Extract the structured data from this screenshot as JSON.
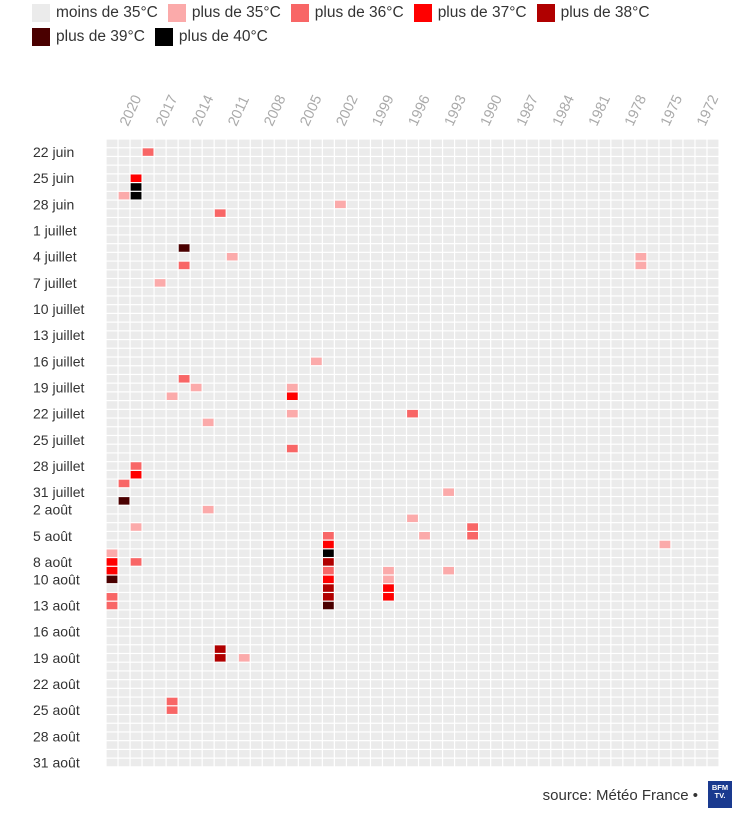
{
  "legend": [
    {
      "label": "moins de 35°C",
      "color": "#ebebeb"
    },
    {
      "label": "plus de 35°C",
      "color": "#fbaaaa"
    },
    {
      "label": "plus de 36°C",
      "color": "#f86666"
    },
    {
      "label": "plus de 37°C",
      "color": "#ff0000"
    },
    {
      "label": "plus de 38°C",
      "color": "#b00000"
    },
    {
      "label": "plus de 39°C",
      "color": "#4a0000"
    },
    {
      "label": "plus de 40°C",
      "color": "#000000"
    }
  ],
  "source": "source: Météo France •",
  "logo_text": "BFM TV.",
  "chart_data": {
    "type": "heatmap",
    "x_tick_labels": [
      "2020",
      "2017",
      "2014",
      "2011",
      "2008",
      "2005",
      "2002",
      "1999",
      "1996",
      "1993",
      "1990",
      "1987",
      "1984",
      "1981",
      "1978",
      "1975",
      "1972"
    ],
    "y_tick_labels": [
      "22 juin",
      "25 juin",
      "28 juin",
      "1 juillet",
      "4 juillet",
      "7 juillet",
      "10 juillet",
      "13 juillet",
      "16 juillet",
      "19 juillet",
      "22 juillet",
      "25 juillet",
      "28 juillet",
      "31 juillet",
      "2 août",
      "5 août",
      "8 août",
      "10 août",
      "13 août",
      "16 août",
      "19 août",
      "22 août",
      "25 août",
      "28 août",
      "31 août"
    ],
    "years": [
      2021,
      2020,
      2019,
      2018,
      2017,
      2016,
      2015,
      2014,
      2013,
      2012,
      2011,
      2010,
      2009,
      2008,
      2007,
      2006,
      2005,
      2004,
      2003,
      2002,
      2001,
      2000,
      1999,
      1998,
      1997,
      1996,
      1995,
      1994,
      1993,
      1992,
      1991,
      1990,
      1989,
      1988,
      1987,
      1986,
      1985,
      1984,
      1983,
      1982,
      1981,
      1980,
      1979,
      1978,
      1977,
      1976,
      1975,
      1974,
      1973,
      1972,
      1971
    ],
    "dates": [
      "21 juin",
      "22 juin",
      "23 juin",
      "24 juin",
      "25 juin",
      "26 juin",
      "27 juin",
      "28 juin",
      "29 juin",
      "30 juin",
      "1 juillet",
      "2 juillet",
      "3 juillet",
      "4 juillet",
      "5 juillet",
      "6 juillet",
      "7 juillet",
      "8 juillet",
      "9 juillet",
      "10 juillet",
      "11 juillet",
      "12 juillet",
      "13 juillet",
      "14 juillet",
      "15 juillet",
      "16 juillet",
      "17 juillet",
      "18 juillet",
      "19 juillet",
      "20 juillet",
      "21 juillet",
      "22 juillet",
      "23 juillet",
      "24 juillet",
      "25 juillet",
      "26 juillet",
      "27 juillet",
      "28 juillet",
      "29 juillet",
      "30 juillet",
      "31 juillet",
      "1 août",
      "2 août",
      "3 août",
      "4 août",
      "5 août",
      "6 août",
      "7 août",
      "8 août",
      "9 août",
      "10 août",
      "11 août",
      "12 août",
      "13 août",
      "14 août",
      "15 août",
      "16 août",
      "17 août",
      "18 août",
      "19 août",
      "20 août",
      "21 août",
      "22 août",
      "23 août",
      "24 août",
      "25 août",
      "26 août",
      "27 août",
      "28 août",
      "29 août",
      "30 août",
      "31 août"
    ],
    "default_category": "moins de 35°C",
    "cells": [
      {
        "year": 2018,
        "date": "22 juin",
        "category": "plus de 36°C"
      },
      {
        "year": 2019,
        "date": "25 juin",
        "category": "plus de 37°C"
      },
      {
        "year": 2019,
        "date": "26 juin",
        "category": "plus de 40°C"
      },
      {
        "year": 2020,
        "date": "27 juin",
        "category": "plus de 35°C"
      },
      {
        "year": 2019,
        "date": "27 juin",
        "category": "plus de 40°C"
      },
      {
        "year": 2002,
        "date": "28 juin",
        "category": "plus de 35°C"
      },
      {
        "year": 2012,
        "date": "29 juin",
        "category": "plus de 36°C"
      },
      {
        "year": 2015,
        "date": "3 juillet",
        "category": "plus de 39°C"
      },
      {
        "year": 2011,
        "date": "4 juillet",
        "category": "plus de 35°C"
      },
      {
        "year": 1977,
        "date": "4 juillet",
        "category": "plus de 35°C"
      },
      {
        "year": 2015,
        "date": "5 juillet",
        "category": "plus de 36°C"
      },
      {
        "year": 1977,
        "date": "5 juillet",
        "category": "plus de 35°C"
      },
      {
        "year": 2017,
        "date": "7 juillet",
        "category": "plus de 35°C"
      },
      {
        "year": 2004,
        "date": "16 juillet",
        "category": "plus de 35°C"
      },
      {
        "year": 2015,
        "date": "18 juillet",
        "category": "plus de 36°C"
      },
      {
        "year": 2014,
        "date": "19 juillet",
        "category": "plus de 35°C"
      },
      {
        "year": 2006,
        "date": "19 juillet",
        "category": "plus de 35°C"
      },
      {
        "year": 2016,
        "date": "20 juillet",
        "category": "plus de 35°C"
      },
      {
        "year": 2006,
        "date": "20 juillet",
        "category": "plus de 37°C"
      },
      {
        "year": 2006,
        "date": "22 juillet",
        "category": "plus de 35°C"
      },
      {
        "year": 1996,
        "date": "22 juillet",
        "category": "plus de 36°C"
      },
      {
        "year": 2013,
        "date": "23 juillet",
        "category": "plus de 35°C"
      },
      {
        "year": 2006,
        "date": "26 juillet",
        "category": "plus de 36°C"
      },
      {
        "year": 2019,
        "date": "28 juillet",
        "category": "plus de 36°C"
      },
      {
        "year": 2019,
        "date": "29 juillet",
        "category": "plus de 37°C"
      },
      {
        "year": 2020,
        "date": "30 juillet",
        "category": "plus de 36°C"
      },
      {
        "year": 1993,
        "date": "31 juillet",
        "category": "plus de 35°C"
      },
      {
        "year": 2020,
        "date": "1 août",
        "category": "plus de 39°C"
      },
      {
        "year": 2013,
        "date": "2 août",
        "category": "plus de 35°C"
      },
      {
        "year": 1996,
        "date": "3 août",
        "category": "plus de 35°C"
      },
      {
        "year": 2019,
        "date": "4 août",
        "category": "plus de 35°C"
      },
      {
        "year": 1991,
        "date": "4 août",
        "category": "plus de 36°C"
      },
      {
        "year": 2003,
        "date": "5 août",
        "category": "plus de 36°C"
      },
      {
        "year": 1995,
        "date": "5 août",
        "category": "plus de 35°C"
      },
      {
        "year": 1991,
        "date": "5 août",
        "category": "plus de 36°C"
      },
      {
        "year": 2003,
        "date": "6 août",
        "category": "plus de 37°C"
      },
      {
        "year": 1975,
        "date": "6 août",
        "category": "plus de 35°C"
      },
      {
        "year": 2021,
        "date": "7 août",
        "category": "plus de 35°C"
      },
      {
        "year": 2003,
        "date": "7 août",
        "category": "plus de 40°C"
      },
      {
        "year": 2021,
        "date": "8 août",
        "category": "plus de 37°C"
      },
      {
        "year": 2019,
        "date": "8 août",
        "category": "plus de 36°C"
      },
      {
        "year": 2003,
        "date": "8 août",
        "category": "plus de 38°C"
      },
      {
        "year": 2021,
        "date": "9 août",
        "category": "plus de 37°C"
      },
      {
        "year": 2003,
        "date": "9 août",
        "category": "plus de 36°C"
      },
      {
        "year": 1998,
        "date": "9 août",
        "category": "plus de 35°C"
      },
      {
        "year": 1993,
        "date": "9 août",
        "category": "plus de 35°C"
      },
      {
        "year": 2021,
        "date": "10 août",
        "category": "plus de 39°C"
      },
      {
        "year": 2003,
        "date": "10 août",
        "category": "plus de 37°C"
      },
      {
        "year": 1998,
        "date": "10 août",
        "category": "plus de 35°C"
      },
      {
        "year": 2003,
        "date": "11 août",
        "category": "plus de 38°C"
      },
      {
        "year": 1998,
        "date": "11 août",
        "category": "plus de 37°C"
      },
      {
        "year": 2021,
        "date": "12 août",
        "category": "plus de 36°C"
      },
      {
        "year": 2003,
        "date": "12 août",
        "category": "plus de 38°C"
      },
      {
        "year": 1998,
        "date": "12 août",
        "category": "plus de 37°C"
      },
      {
        "year": 2021,
        "date": "13 août",
        "category": "plus de 36°C"
      },
      {
        "year": 2003,
        "date": "13 août",
        "category": "plus de 39°C"
      },
      {
        "year": 2012,
        "date": "18 août",
        "category": "plus de 38°C"
      },
      {
        "year": 2012,
        "date": "19 août",
        "category": "plus de 38°C"
      },
      {
        "year": 2010,
        "date": "19 août",
        "category": "plus de 35°C"
      },
      {
        "year": 2016,
        "date": "24 août",
        "category": "plus de 36°C"
      },
      {
        "year": 2016,
        "date": "25 août",
        "category": "plus de 36°C"
      }
    ]
  }
}
